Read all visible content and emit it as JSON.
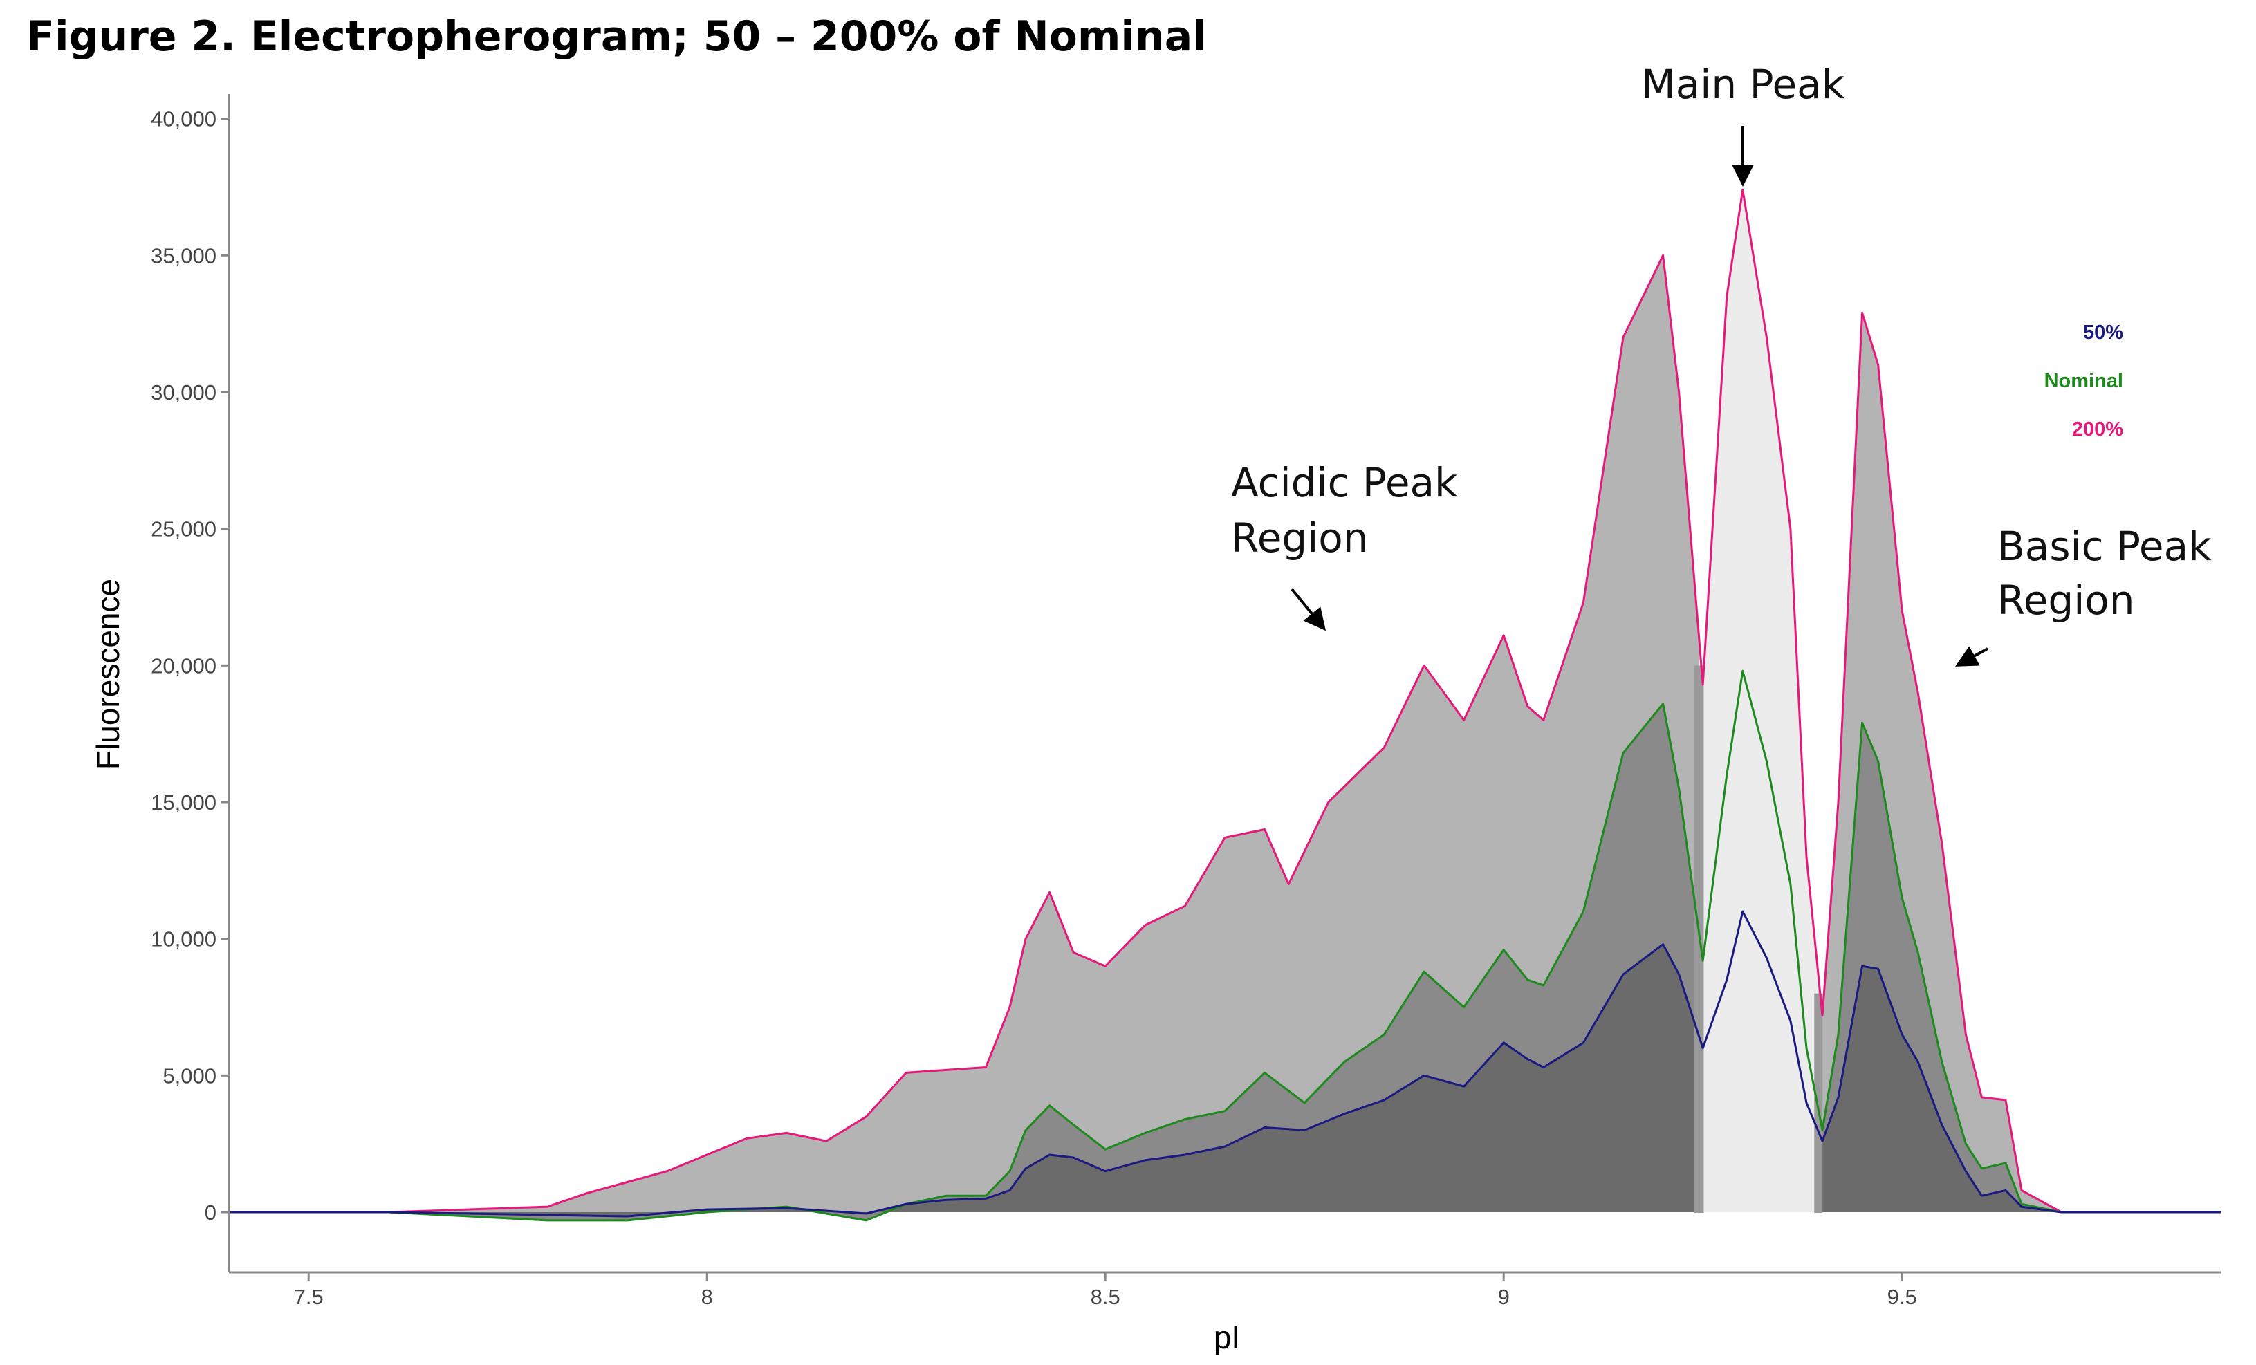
{
  "title": "Figure 2.  Electropherogram; 50 – 200% of Nominal",
  "chart_data": {
    "type": "area",
    "xlabel": "pI",
    "ylabel": "Fluorescence",
    "xlim": [
      7.4,
      9.9
    ],
    "ylim": [
      -2200,
      40800
    ],
    "x_ticks": [
      7.5,
      8,
      8.5,
      9,
      9.5
    ],
    "x_tick_labels": [
      "7.5",
      "8",
      "8.5",
      "9",
      "9.5"
    ],
    "y_ticks": [
      0,
      5000,
      10000,
      15000,
      20000,
      25000,
      30000,
      35000,
      40000
    ],
    "y_tick_labels": [
      "0",
      "5,000",
      "10,000",
      "15,000",
      "20,000",
      "25,000",
      "30,000",
      "35,000",
      "40,000"
    ],
    "grid": false,
    "legend_position": "top-right",
    "main_peak_band": [
      9.245,
      9.395
    ],
    "series": [
      {
        "name": "50%",
        "color": "#1a1a80",
        "fill": "#6b6b6b",
        "points": [
          [
            7.4,
            0
          ],
          [
            7.6,
            0
          ],
          [
            7.8,
            -100
          ],
          [
            7.9,
            -150
          ],
          [
            8.0,
            100
          ],
          [
            8.1,
            150
          ],
          [
            8.2,
            -50
          ],
          [
            8.25,
            300
          ],
          [
            8.3,
            450
          ],
          [
            8.35,
            500
          ],
          [
            8.38,
            800
          ],
          [
            8.4,
            1600
          ],
          [
            8.43,
            2100
          ],
          [
            8.46,
            2000
          ],
          [
            8.5,
            1500
          ],
          [
            8.55,
            1900
          ],
          [
            8.6,
            2100
          ],
          [
            8.65,
            2400
          ],
          [
            8.7,
            3100
          ],
          [
            8.75,
            3000
          ],
          [
            8.8,
            3600
          ],
          [
            8.85,
            4100
          ],
          [
            8.9,
            5000
          ],
          [
            8.95,
            4600
          ],
          [
            9.0,
            6200
          ],
          [
            9.03,
            5600
          ],
          [
            9.05,
            5300
          ],
          [
            9.1,
            6200
          ],
          [
            9.15,
            8700
          ],
          [
            9.2,
            9800
          ],
          [
            9.22,
            8700
          ],
          [
            9.25,
            6000
          ],
          [
            9.28,
            8500
          ],
          [
            9.3,
            11000
          ],
          [
            9.33,
            9300
          ],
          [
            9.36,
            7000
          ],
          [
            9.38,
            4000
          ],
          [
            9.4,
            2600
          ],
          [
            9.42,
            4200
          ],
          [
            9.45,
            9000
          ],
          [
            9.47,
            8900
          ],
          [
            9.5,
            6500
          ],
          [
            9.52,
            5500
          ],
          [
            9.55,
            3200
          ],
          [
            9.58,
            1500
          ],
          [
            9.6,
            600
          ],
          [
            9.63,
            800
          ],
          [
            9.65,
            200
          ],
          [
            9.7,
            0
          ],
          [
            9.9,
            0
          ]
        ]
      },
      {
        "name": "Nominal",
        "color": "#1e8a1e",
        "fill": "#8a8a8a",
        "points": [
          [
            7.4,
            0
          ],
          [
            7.6,
            0
          ],
          [
            7.8,
            -300
          ],
          [
            7.9,
            -300
          ],
          [
            8.0,
            0
          ],
          [
            8.1,
            200
          ],
          [
            8.2,
            -300
          ],
          [
            8.25,
            300
          ],
          [
            8.3,
            600
          ],
          [
            8.35,
            600
          ],
          [
            8.38,
            1500
          ],
          [
            8.4,
            3000
          ],
          [
            8.43,
            3900
          ],
          [
            8.46,
            3200
          ],
          [
            8.5,
            2300
          ],
          [
            8.55,
            2900
          ],
          [
            8.6,
            3400
          ],
          [
            8.65,
            3700
          ],
          [
            8.7,
            5100
          ],
          [
            8.75,
            4000
          ],
          [
            8.8,
            5500
          ],
          [
            8.85,
            6500
          ],
          [
            8.9,
            8800
          ],
          [
            8.95,
            7500
          ],
          [
            9.0,
            9600
          ],
          [
            9.03,
            8500
          ],
          [
            9.05,
            8300
          ],
          [
            9.1,
            11000
          ],
          [
            9.15,
            16800
          ],
          [
            9.2,
            18600
          ],
          [
            9.22,
            15500
          ],
          [
            9.25,
            9200
          ],
          [
            9.28,
            16000
          ],
          [
            9.3,
            19800
          ],
          [
            9.33,
            16500
          ],
          [
            9.36,
            12000
          ],
          [
            9.38,
            6000
          ],
          [
            9.4,
            3000
          ],
          [
            9.42,
            6500
          ],
          [
            9.45,
            17900
          ],
          [
            9.47,
            16500
          ],
          [
            9.5,
            11500
          ],
          [
            9.52,
            9500
          ],
          [
            9.55,
            5500
          ],
          [
            9.58,
            2500
          ],
          [
            9.6,
            1600
          ],
          [
            9.63,
            1800
          ],
          [
            9.65,
            300
          ],
          [
            9.7,
            0
          ],
          [
            9.9,
            0
          ]
        ]
      },
      {
        "name": "200%",
        "color": "#e6197a",
        "fill": "#b4b4b4",
        "points": [
          [
            7.4,
            0
          ],
          [
            7.6,
            0
          ],
          [
            7.8,
            200
          ],
          [
            7.85,
            700
          ],
          [
            7.9,
            1100
          ],
          [
            7.95,
            1500
          ],
          [
            8.0,
            2100
          ],
          [
            8.05,
            2700
          ],
          [
            8.1,
            2900
          ],
          [
            8.15,
            2600
          ],
          [
            8.2,
            3500
          ],
          [
            8.25,
            5100
          ],
          [
            8.3,
            5200
          ],
          [
            8.35,
            5300
          ],
          [
            8.38,
            7500
          ],
          [
            8.4,
            10000
          ],
          [
            8.43,
            11700
          ],
          [
            8.46,
            9500
          ],
          [
            8.5,
            9000
          ],
          [
            8.55,
            10500
          ],
          [
            8.6,
            11200
          ],
          [
            8.65,
            13700
          ],
          [
            8.7,
            14000
          ],
          [
            8.73,
            12000
          ],
          [
            8.78,
            15000
          ],
          [
            8.85,
            17000
          ],
          [
            8.9,
            20000
          ],
          [
            8.95,
            18000
          ],
          [
            9.0,
            21100
          ],
          [
            9.03,
            18500
          ],
          [
            9.05,
            18000
          ],
          [
            9.1,
            22300
          ],
          [
            9.15,
            32000
          ],
          [
            9.2,
            35000
          ],
          [
            9.22,
            30000
          ],
          [
            9.25,
            19300
          ],
          [
            9.28,
            33500
          ],
          [
            9.3,
            37400
          ],
          [
            9.33,
            32000
          ],
          [
            9.36,
            25000
          ],
          [
            9.38,
            13000
          ],
          [
            9.4,
            7200
          ],
          [
            9.42,
            15000
          ],
          [
            9.45,
            32900
          ],
          [
            9.47,
            31000
          ],
          [
            9.5,
            22000
          ],
          [
            9.52,
            19000
          ],
          [
            9.55,
            13500
          ],
          [
            9.58,
            6500
          ],
          [
            9.6,
            4200
          ],
          [
            9.63,
            4100
          ],
          [
            9.65,
            800
          ],
          [
            9.7,
            0
          ],
          [
            9.9,
            0
          ]
        ]
      }
    ],
    "annotations": {
      "main_peak": "Main Peak",
      "acidic": [
        "Acidic Peak",
        "Region"
      ],
      "basic": [
        "Basic Peak",
        "Region"
      ]
    }
  }
}
